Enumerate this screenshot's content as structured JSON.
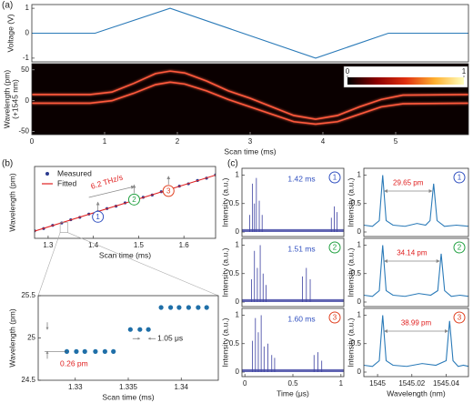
{
  "chart_data": [
    {
      "type": "line",
      "panel": "(a)",
      "ylabel": "Voltage (V)",
      "xlim": [
        0,
        6
      ],
      "ylim": [
        -1.15,
        1.15
      ],
      "yticks": [
        -1,
        0,
        1
      ],
      "series": [
        {
          "color": "#2a7ab8",
          "x": [
            0,
            0.87,
            1.9,
            3.9,
            4.9,
            6
          ],
          "values": [
            0,
            0,
            1,
            -1,
            0,
            0
          ]
        }
      ]
    },
    {
      "type": "line",
      "background": "#0a0000",
      "xlabel": "Scan time (ms)",
      "ylabel": [
        "Wavelength (pm)",
        "(+1545 nm)"
      ],
      "xlim": [
        0,
        6
      ],
      "ylim": [
        -55,
        60
      ],
      "xticks": [
        0,
        1,
        2,
        3,
        4,
        5
      ],
      "yticks": [
        -50,
        0,
        50
      ],
      "colorbar": {
        "ticks": [
          0,
          1
        ],
        "colors": [
          "#000000",
          "#8a0000",
          "#e03010",
          "#ffb030",
          "#ffffc0"
        ]
      },
      "series": [
        {
          "color": "#a02818",
          "x": [
            0,
            6
          ],
          "values": [
            12,
            12
          ]
        },
        {
          "color": "#ff5a3c",
          "x": [
            0,
            0.8,
            1.1,
            1.4,
            1.7,
            1.9,
            2.1,
            2.4,
            2.7,
            3.0,
            3.3,
            3.6,
            3.9,
            4.2,
            4.5,
            4.8,
            5.1,
            6
          ],
          "values": [
            10,
            10,
            14,
            28,
            44,
            48,
            45,
            32,
            16,
            4,
            -10,
            -24,
            -30,
            -24,
            -10,
            2,
            9,
            10
          ]
        },
        {
          "color": "#ff5a3c",
          "x": [
            0,
            0.8,
            1.1,
            1.4,
            1.7,
            1.9,
            2.1,
            2.4,
            2.7,
            3.0,
            3.3,
            3.6,
            3.9,
            4.2,
            4.5,
            4.8,
            5.1,
            6
          ],
          "values": [
            -4,
            -4,
            0,
            12,
            26,
            30,
            27,
            16,
            2,
            -10,
            -22,
            -34,
            -38,
            -34,
            -22,
            -10,
            -5,
            -4
          ]
        }
      ]
    },
    {
      "type": "line",
      "panel": "(b)",
      "xlabel": "Scan time (ms)",
      "ylabel": "Wavelength (pm)",
      "xlim": [
        1.27,
        1.67
      ],
      "ylim": [
        0,
        100
      ],
      "xticks": [
        1.3,
        1.4,
        1.5,
        1.6
      ],
      "legend": "upper left",
      "series": [
        {
          "name": "Measured",
          "color": "#2b3a8f",
          "marker": true,
          "x": [
            1.27,
            1.29,
            1.31,
            1.33,
            1.35,
            1.37,
            1.39,
            1.41,
            1.43,
            1.45,
            1.47,
            1.49,
            1.51,
            1.53,
            1.55,
            1.57,
            1.59,
            1.61,
            1.63,
            1.65,
            1.67
          ],
          "values": [
            10.5,
            13.6,
            18.1,
            21.4,
            25.9,
            29.2,
            33.8,
            37.0,
            41.5,
            44.8,
            49.4,
            52.6,
            57.1,
            60.3,
            64.9,
            68.2,
            72.7,
            75.9,
            80.5,
            83.7,
            88.3
          ]
        },
        {
          "name": "Fitted",
          "color": "#e02020",
          "x": [
            1.27,
            1.67
          ],
          "values": [
            10,
            88
          ]
        }
      ],
      "annotations": [
        {
          "text": "6.2 THz/s",
          "color": "#e02020"
        }
      ],
      "markers": [
        {
          "text": "1",
          "color": "#3050c0"
        },
        {
          "text": "2",
          "color": "#20a040"
        },
        {
          "text": "3",
          "color": "#e04020"
        }
      ]
    },
    {
      "type": "scatter",
      "xlabel": "Scan time (ms)",
      "ylabel": "Wavelength (pm)",
      "xlim": [
        1.3265,
        1.3435
      ],
      "ylim": [
        24.5,
        25.5
      ],
      "xticks": [
        1.33,
        1.335,
        1.34
      ],
      "yticks": [
        24.5,
        25,
        25.5
      ],
      "color": "#1f6fa8",
      "x": [
        1.3292,
        1.3301,
        1.3309,
        1.3319,
        1.3328,
        1.3336,
        1.3352,
        1.3361,
        1.3369,
        1.3381,
        1.339,
        1.3398,
        1.3407,
        1.3416,
        1.3424
      ],
      "values": [
        24.84,
        24.84,
        24.84,
        24.84,
        24.84,
        24.84,
        25.1,
        25.1,
        25.1,
        25.36,
        25.36,
        25.36,
        25.36,
        25.36,
        25.36
      ],
      "annotations": [
        {
          "text": "0.26 pm",
          "color": "#e02020"
        },
        {
          "text": "1.05 μs",
          "color": "#222222"
        }
      ]
    },
    {
      "type": "stem",
      "panel": "(c)",
      "ylabel": "Intensity (a.u.)",
      "xlim": [
        -0.03,
        1.03
      ],
      "ylim": [
        -0.08,
        1.12
      ],
      "yticks": [
        0,
        0.5,
        1
      ],
      "color": "#3a3fa0",
      "label": {
        "text": "1.42 ms",
        "color": "#3050c0"
      },
      "marker": {
        "text": "1",
        "color": "#3050c0"
      },
      "x": [
        0.05,
        0.08,
        0.1,
        0.12,
        0.15,
        0.18,
        0.9,
        0.93,
        0.96
      ],
      "values": [
        0.3,
        0.85,
        0.5,
        0.95,
        0.55,
        0.3,
        0.25,
        0.45,
        0.35
      ]
    },
    {
      "type": "line",
      "ylabel": "Intensity (a.u.)",
      "xlim": [
        1544.992,
        1545.053
      ],
      "ylim": [
        -0.08,
        1.12
      ],
      "yticks": [
        0,
        0.5,
        1
      ],
      "annotation": {
        "text": "29.65 pm",
        "color": "#e02020"
      },
      "marker": {
        "text": "1",
        "color": "#3050c0"
      },
      "series": [
        {
          "color": "#2a7ab8",
          "x": [
            1544.992,
            1544.997,
            1545.001,
            1545.003,
            1545.005,
            1545.009,
            1545.016,
            1545.023,
            1545.028,
            1545.0306,
            1545.0327,
            1545.0347,
            1545.039,
            1545.046,
            1545.053
          ],
          "values": [
            0.12,
            0.1,
            0.2,
            1,
            0.2,
            0.12,
            0.1,
            0.15,
            0.12,
            0.2,
            0.85,
            0.2,
            0.1,
            0.12,
            0.1
          ]
        }
      ]
    },
    {
      "type": "stem",
      "ylabel": "Intensity (a.u.)",
      "xlim": [
        -0.03,
        1.03
      ],
      "ylim": [
        -0.08,
        1.12
      ],
      "yticks": [
        0,
        0.5,
        1
      ],
      "color": "#3a3fa0",
      "label": {
        "text": "1.51 ms",
        "color": "#3050c0"
      },
      "marker": {
        "text": "2",
        "color": "#20a040"
      },
      "x": [
        0.07,
        0.1,
        0.13,
        0.16,
        0.19,
        0.22,
        0.6,
        0.64,
        0.68
      ],
      "values": [
        0.4,
        0.9,
        0.6,
        1.0,
        0.5,
        0.3,
        0.45,
        0.6,
        0.4
      ]
    },
    {
      "type": "line",
      "ylabel": "Intensity (a.u.)",
      "xlim": [
        1544.992,
        1545.053
      ],
      "ylim": [
        -0.08,
        1.12
      ],
      "yticks": [
        0,
        0.5,
        1
      ],
      "annotation": {
        "text": "34.14 pm",
        "color": "#e02020"
      },
      "marker": {
        "text": "2",
        "color": "#20a040"
      },
      "series": [
        {
          "color": "#2a7ab8",
          "x": [
            1544.992,
            1544.997,
            1545.001,
            1545.003,
            1545.005,
            1545.009,
            1545.016,
            1545.024,
            1545.031,
            1545.0351,
            1545.0371,
            1545.0391,
            1545.043,
            1545.048,
            1545.053
          ],
          "values": [
            0.12,
            0.1,
            0.2,
            1,
            0.2,
            0.12,
            0.1,
            0.15,
            0.12,
            0.2,
            0.85,
            0.2,
            0.1,
            0.12,
            0.1
          ]
        }
      ]
    },
    {
      "type": "stem",
      "ylabel": "Intensity (a.u.)",
      "xlabel": "Time (μs)",
      "xlim": [
        -0.03,
        1.03
      ],
      "ylim": [
        -0.08,
        1.12
      ],
      "xticks": [
        0,
        0.5,
        1
      ],
      "yticks": [
        0,
        0.5,
        1
      ],
      "color": "#3a3fa0",
      "label": {
        "text": "1.60 ms",
        "color": "#3050c0"
      },
      "marker": {
        "text": "3",
        "color": "#e04020"
      },
      "x": [
        0.08,
        0.11,
        0.14,
        0.17,
        0.2,
        0.24,
        0.28,
        0.31,
        0.72,
        0.76,
        0.8
      ],
      "values": [
        0.55,
        0.95,
        0.7,
        1.0,
        0.45,
        0.5,
        0.3,
        0.25,
        0.3,
        0.35,
        0.2
      ]
    },
    {
      "type": "line",
      "ylabel": "Intensity (a.u.)",
      "xlabel": "Wavelength (nm)",
      "xlim": [
        1544.992,
        1545.053
      ],
      "ylim": [
        -0.08,
        1.12
      ],
      "xticks": [
        1545,
        1545.02,
        1545.04
      ],
      "yticks": [
        0,
        0.5,
        1
      ],
      "annotation": {
        "text": "38.99 pm",
        "color": "#e02020"
      },
      "marker": {
        "text": "3",
        "color": "#e04020"
      },
      "series": [
        {
          "color": "#2a7ab8",
          "x": [
            1544.992,
            1544.997,
            1545.001,
            1545.003,
            1545.005,
            1545.009,
            1545.017,
            1545.026,
            1545.034,
            1545.04,
            1545.042,
            1545.044,
            1545.047,
            1545.05,
            1545.053
          ],
          "values": [
            0.12,
            0.1,
            0.2,
            1,
            0.2,
            0.12,
            0.1,
            0.15,
            0.12,
            0.2,
            0.9,
            0.2,
            0.1,
            0.12,
            0.1
          ]
        }
      ]
    }
  ]
}
